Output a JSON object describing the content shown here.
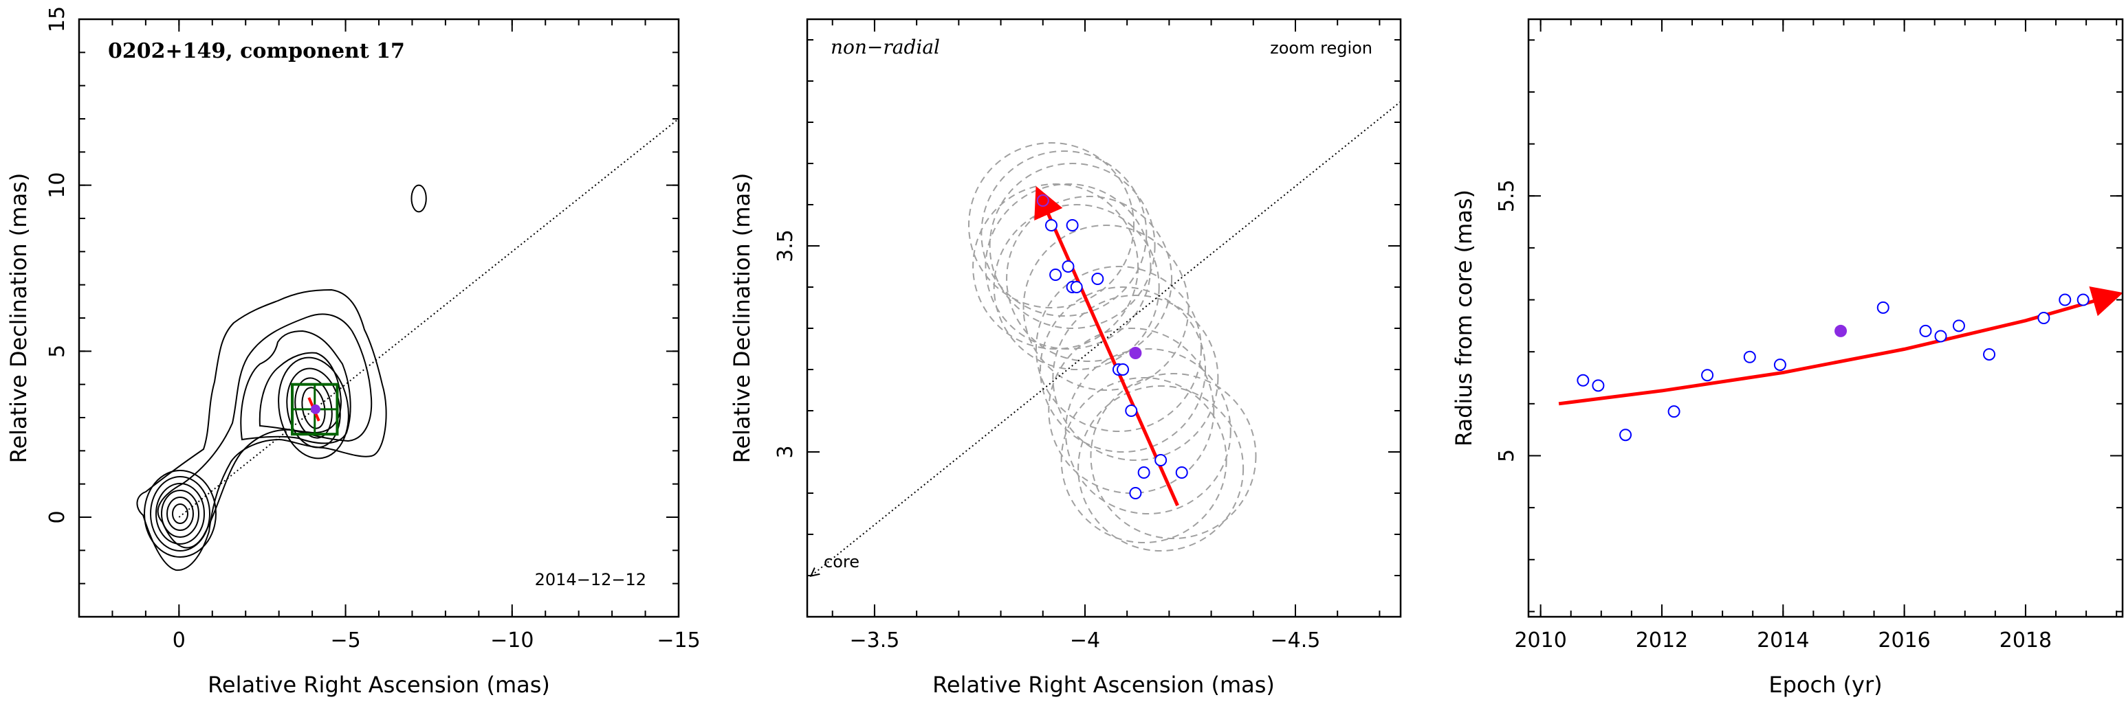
{
  "colors": {
    "arrow": "#ff0000",
    "obs_marker": "#0000ff",
    "epoch_marker": "#8a2be2",
    "box": "#006400",
    "circle": "#a0a0a0"
  },
  "chart_data": [
    {
      "type": "contour",
      "title": "0202+149, component 17",
      "date_label": "2014−12−12",
      "xlabel": "Relative Right Ascension (mas)",
      "ylabel": "Relative Declination (mas)",
      "xlim": [
        3,
        -15
      ],
      "ylim": [
        -3,
        15
      ],
      "xticks": [
        0,
        -5,
        -10,
        -15
      ],
      "xtick_labels": [
        "0",
        "−5",
        "−10",
        "−15"
      ],
      "yticks": [
        0,
        5,
        10,
        15
      ],
      "ytick_labels": [
        "0",
        "5",
        "10",
        "15"
      ],
      "direction_line": {
        "from": [
          0,
          0
        ],
        "to": [
          -15,
          12
        ]
      },
      "zoom_box": {
        "x": [
          -3.4,
          -4.75
        ],
        "y": [
          2.5,
          4.0
        ]
      },
      "track": {
        "from": [
          -3.9,
          3.6
        ],
        "to": [
          -4.2,
          2.9
        ]
      },
      "current_epoch_point": {
        "x": -4.1,
        "y": 3.25
      },
      "beam": {
        "x": -7.2,
        "y": 9.6,
        "rx": 0.22,
        "ry": 0.4
      }
    },
    {
      "type": "scatter",
      "label_left": "non−radial",
      "label_right": "zoom region",
      "label_core": "core",
      "xlabel": "Relative Right Ascension (mas)",
      "ylabel": "Relative Declination (mas)",
      "xlim": [
        -3.34,
        -4.75
      ],
      "ylim": [
        2.6,
        4.05
      ],
      "xticks": [
        -3.5,
        -4,
        -4.5
      ],
      "xtick_labels": [
        "−3.5",
        "−4",
        "−4.5"
      ],
      "yticks": [
        3,
        3.5
      ],
      "ytick_labels": [
        "3",
        "3.5"
      ],
      "points": [
        {
          "x": -3.92,
          "y": 3.55
        },
        {
          "x": -3.97,
          "y": 3.55
        },
        {
          "x": -3.93,
          "y": 3.43
        },
        {
          "x": -3.96,
          "y": 3.45
        },
        {
          "x": -3.97,
          "y": 3.4
        },
        {
          "x": -3.98,
          "y": 3.4
        },
        {
          "x": -4.03,
          "y": 3.42
        },
        {
          "x": -4.08,
          "y": 3.2
        },
        {
          "x": -4.09,
          "y": 3.2
        },
        {
          "x": -4.11,
          "y": 3.1
        },
        {
          "x": -4.14,
          "y": 2.95
        },
        {
          "x": -4.12,
          "y": 2.9
        },
        {
          "x": -4.18,
          "y": 2.98
        },
        {
          "x": -4.23,
          "y": 2.95
        }
      ],
      "current_epoch_point": {
        "x": -4.12,
        "y": 3.24
      },
      "highlight_point": {
        "x": -3.9,
        "y": 3.61
      },
      "track": {
        "from": [
          -4.22,
          2.87
        ],
        "to": [
          -3.89,
          3.63
        ]
      },
      "core_line": {
        "from": [
          -4.75,
          3.85
        ],
        "to": [
          -3.35,
          2.7
        ]
      },
      "uncertainty_circles": [
        {
          "x": -3.92,
          "y": 3.55,
          "r": 0.2
        },
        {
          "x": -3.95,
          "y": 3.53,
          "r": 0.2
        },
        {
          "x": -3.97,
          "y": 3.5,
          "r": 0.2
        },
        {
          "x": -3.93,
          "y": 3.45,
          "r": 0.2
        },
        {
          "x": -3.96,
          "y": 3.45,
          "r": 0.2
        },
        {
          "x": -3.98,
          "y": 3.4,
          "r": 0.2
        },
        {
          "x": -4.01,
          "y": 3.42,
          "r": 0.2
        },
        {
          "x": -4.05,
          "y": 3.35,
          "r": 0.2
        },
        {
          "x": -4.08,
          "y": 3.25,
          "r": 0.2
        },
        {
          "x": -4.09,
          "y": 3.2,
          "r": 0.2
        },
        {
          "x": -4.12,
          "y": 3.18,
          "r": 0.2
        },
        {
          "x": -4.11,
          "y": 3.1,
          "r": 0.2
        },
        {
          "x": -4.15,
          "y": 3.05,
          "r": 0.2
        },
        {
          "x": -4.14,
          "y": 2.98,
          "r": 0.2
        },
        {
          "x": -4.18,
          "y": 2.96,
          "r": 0.2
        },
        {
          "x": -4.21,
          "y": 2.99,
          "r": 0.2
        }
      ]
    },
    {
      "type": "scatter",
      "xlabel": "Epoch (yr)",
      "ylabel": "Radius from core (mas)",
      "xlim": [
        2009.8,
        2019.6
      ],
      "ylim": [
        4.69,
        5.84
      ],
      "xticks": [
        2010,
        2012,
        2014,
        2016,
        2018
      ],
      "xtick_labels": [
        "2010",
        "2012",
        "2014",
        "2016",
        "2018"
      ],
      "yticks": [
        5,
        5.5
      ],
      "ytick_labels": [
        "5",
        "5.5"
      ],
      "points": [
        {
          "x": 2010.7,
          "y": 5.145
        },
        {
          "x": 2010.95,
          "y": 5.135
        },
        {
          "x": 2011.4,
          "y": 5.04
        },
        {
          "x": 2012.2,
          "y": 5.085
        },
        {
          "x": 2012.75,
          "y": 5.155
        },
        {
          "x": 2013.45,
          "y": 5.19
        },
        {
          "x": 2013.95,
          "y": 5.175
        },
        {
          "x": 2015.65,
          "y": 5.285
        },
        {
          "x": 2016.35,
          "y": 5.24
        },
        {
          "x": 2016.6,
          "y": 5.23
        },
        {
          "x": 2016.9,
          "y": 5.25
        },
        {
          "x": 2017.4,
          "y": 5.195
        },
        {
          "x": 2018.3,
          "y": 5.265
        },
        {
          "x": 2018.65,
          "y": 5.3
        },
        {
          "x": 2018.95,
          "y": 5.3
        }
      ],
      "current_epoch_point": {
        "x": 2014.95,
        "y": 5.24
      },
      "fit": {
        "x": [
          2010.3,
          2012,
          2014,
          2016,
          2018,
          2019.5
        ],
        "y": [
          5.1,
          5.125,
          5.16,
          5.205,
          5.26,
          5.31
        ]
      }
    }
  ]
}
